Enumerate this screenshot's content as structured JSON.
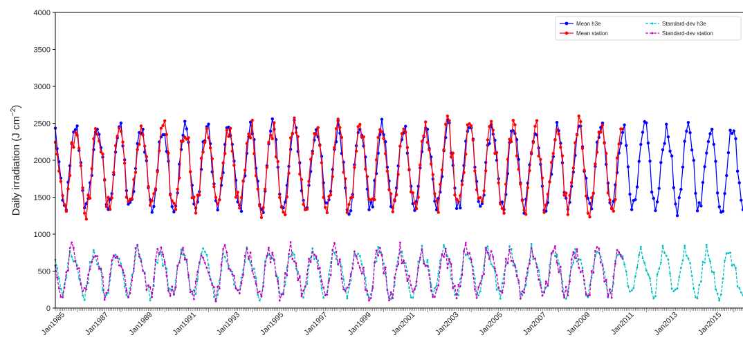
{
  "chart_data": {
    "type": "line",
    "title": "",
    "xlabel": "",
    "ylabel": "Daily irradiation (J cm",
    "ylabel_unit_exponent": "−2",
    "ylabel_close": ")",
    "ylim": [
      0,
      4000
    ],
    "xlim": [
      "1985-01",
      "2016-06"
    ],
    "y_ticks": [
      "0",
      "500",
      "1000",
      "1500",
      "2000",
      "2500",
      "3000",
      "3500",
      "4000"
    ],
    "x_ticks": [
      "Jan1985",
      "Jan1987",
      "Jan1989",
      "Jan1991",
      "Jan1993",
      "Jan1995",
      "Jan1997",
      "Jan1999",
      "Jan2001",
      "Jan2003",
      "Jan2005",
      "Jan2007",
      "Jan2009",
      "Jan2011",
      "Jan2013",
      "Jan2015"
    ],
    "grid": false,
    "legend": "top-right",
    "monthly_profile_mean": [
      2400,
      2200,
      1950,
      1650,
      1420,
      1350,
      1400,
      1620,
      1880,
      2150,
      2330,
      2450
    ],
    "monthly_profile_std": [
      580,
      480,
      330,
      220,
      180,
      250,
      380,
      560,
      700,
      780,
      720,
      650
    ],
    "series": [
      {
        "name": "Mean  h3e",
        "key": "mean_h3e",
        "color": "#0000ff",
        "style": "solid",
        "marker": "circle",
        "start": "1985-01",
        "end": "2016-06"
      },
      {
        "name": "Mean station",
        "key": "mean_station",
        "color": "#ff0000",
        "style": "solid",
        "marker": "circle",
        "start": "1985-01",
        "end": "2010-12"
      },
      {
        "name": "Standard-dev  h3e",
        "key": "std_h3e",
        "color": "#00bfbf",
        "style": "dashed",
        "marker": "dot",
        "start": "1985-01",
        "end": "2016-06"
      },
      {
        "name": "Standard-dev station",
        "key": "std_station",
        "color": "#bf00bf",
        "style": "dashed",
        "marker": "dot",
        "start": "1985-01",
        "end": "2010-12"
      }
    ]
  }
}
